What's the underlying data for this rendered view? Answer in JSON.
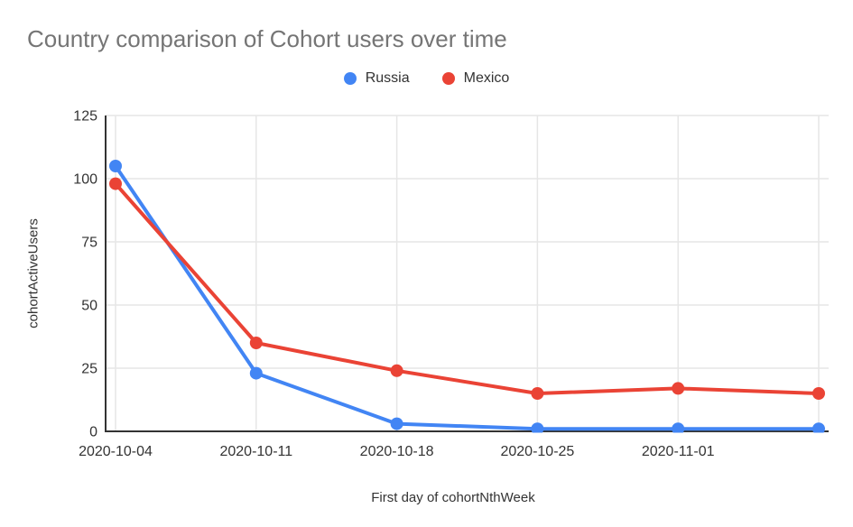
{
  "chart_data": {
    "type": "line",
    "title": "Country comparison of Cohort users over time",
    "xlabel": "First day of cohortNthWeek",
    "ylabel": "cohortActiveUsers",
    "categories": [
      "2020-10-04",
      "2020-10-11",
      "2020-10-18",
      "2020-10-25",
      "2020-11-01",
      ""
    ],
    "series": [
      {
        "name": "Russia",
        "color": "#4285F4",
        "values": [
          105,
          23,
          3,
          1,
          1,
          1
        ]
      },
      {
        "name": "Mexico",
        "color": "#EA4335",
        "values": [
          98,
          35,
          24,
          15,
          17,
          15
        ]
      }
    ],
    "ylim": [
      0,
      125
    ],
    "yticks": [
      0,
      25,
      50,
      75,
      100,
      125
    ],
    "grid": true,
    "legend_position": "top",
    "colors": {
      "title_text": "#757575",
      "axis_text": "#333333",
      "gridline": "#e6e6e6",
      "axis_line": "#333333",
      "background": "#ffffff"
    }
  }
}
